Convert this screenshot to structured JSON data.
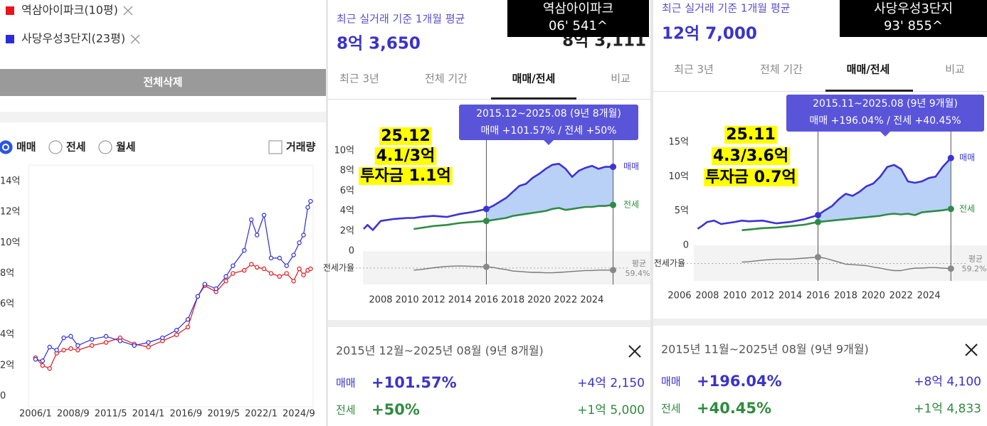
{
  "left_panel": {
    "delete_all_button": "전체삭제",
    "deal_types": [
      "매매",
      "전세",
      "월세"
    ],
    "selected_deal_type": 0,
    "volume_checkbox": "거래량",
    "chart": {
      "type": "line",
      "x": [
        2006.0,
        2006.5,
        2007,
        2007.5,
        2008,
        2008.5,
        2009,
        2010,
        2011,
        2012,
        2013,
        2014,
        2015,
        2016,
        2016.8,
        2017.5,
        2018,
        2018.8,
        2019.5,
        2020,
        2020.8,
        2021.3,
        2021.7,
        2022.2,
        2022.7,
        2023.3,
        2023.8,
        2024.3,
        2024.7,
        2025.0,
        2025.3,
        2025.5
      ],
      "xlim": [
        2005.5,
        2025.68
      ],
      "xticks": [
        {
          "value": 2006.0,
          "label": "2006/1"
        },
        {
          "value": 2008.667,
          "label": "2008/9"
        },
        {
          "value": 2011.333,
          "label": "2011/5"
        },
        {
          "value": 2014.0,
          "label": "2014/1"
        },
        {
          "value": 2016.667,
          "label": "2016/9"
        },
        {
          "value": 2019.333,
          "label": "2019/5"
        },
        {
          "value": 2022.0,
          "label": "2022/1"
        },
        {
          "value": 2024.667,
          "label": "2024/9"
        }
      ],
      "ylim": [
        0,
        14
      ],
      "yticks": [
        {
          "value": 14,
          "label": "14억"
        },
        {
          "value": 12,
          "label": "12억"
        },
        {
          "value": 10,
          "label": "10억"
        },
        {
          "value": 8,
          "label": "8억"
        },
        {
          "value": 6,
          "label": "6억"
        },
        {
          "value": 4,
          "label": "4억"
        },
        {
          "value": 2,
          "label": "2억"
        },
        0
      ],
      "markers": true,
      "series": [
        {
          "name": "역삼아이파크(10평)",
          "color": "#e8141b",
          "values": [
            2.5,
            2.0,
            1.8,
            2.8,
            3.0,
            3.1,
            3.0,
            3.3,
            3.5,
            3.8,
            3.4,
            3.2,
            3.6,
            4.0,
            4.5,
            6.5,
            7.2,
            6.8,
            7.5,
            8.0,
            8.2,
            8.6,
            8.4,
            8.3,
            8.0,
            7.8,
            8.0,
            7.5,
            8.3,
            7.9,
            8.2,
            8.3
          ]
        },
        {
          "name": "사당우성3단지(23평)",
          "color": "#2b2bd9",
          "values": [
            2.4,
            2.3,
            3.2,
            3.0,
            3.8,
            3.9,
            3.3,
            3.7,
            3.9,
            3.6,
            3.3,
            3.5,
            3.8,
            4.3,
            5.0,
            6.5,
            7.3,
            7.0,
            7.8,
            8.5,
            9.5,
            11.5,
            10.5,
            11.8,
            9.0,
            9.0,
            8.5,
            9.2,
            10.0,
            10.5,
            12.3,
            12.7
          ]
        }
      ]
    }
  },
  "middle_panel": {
    "subtitle": "최근 실거래 기준 1개월 평균",
    "price": "8억 3,650",
    "hidden_price": "8억 3,111",
    "overlay": [
      "역삼아이파크",
      "06' 541^"
    ],
    "tabs": [
      "최근 3년",
      "전체 기간",
      "매매/전세",
      "비교"
    ],
    "active_tab": 2,
    "annotation": [
      "25.12",
      "4.1/3억",
      "투자금 1.1억"
    ],
    "tooltip": [
      "2015.12~2025.08 (9년 8개월)",
      "매매 +101.57%  /  전세 +50%"
    ],
    "chart": {
      "type": "line",
      "x": [
        2006.7,
        2007.0,
        2007.4,
        2008,
        2009,
        2010,
        2010.5,
        2011,
        2012,
        2013,
        2014,
        2015,
        2016,
        2016.5,
        2017,
        2017.5,
        2018,
        2018.5,
        2019,
        2019.5,
        2020,
        2020.5,
        2021,
        2021.5,
        2022,
        2022.5,
        2023,
        2023.5,
        2024,
        2024.5,
        2025,
        2025.6
      ],
      "xlim": [
        2006.65,
        2025.84
      ],
      "xticks": [
        2008,
        2010,
        2012,
        2014,
        2016,
        2018,
        2020,
        2022,
        2024
      ],
      "ylim": [
        0,
        10
      ],
      "yticks": [
        {
          "value": 10,
          "label": "10억"
        },
        {
          "value": 8,
          "label": "8억"
        },
        {
          "value": 6,
          "label": "6억"
        },
        {
          "value": 4,
          "label": "4억"
        },
        {
          "value": 2,
          "label": "2억"
        },
        0
      ],
      "series": [
        {
          "name": "매매",
          "color": "#3b33d6",
          "values": [
            2.2,
            2.6,
            2.1,
            3.0,
            3.2,
            3.3,
            3.3,
            3.4,
            3.5,
            3.4,
            3.7,
            3.9,
            4.2,
            4.5,
            4.9,
            5.3,
            5.9,
            6.5,
            6.7,
            7.3,
            7.7,
            8.2,
            8.6,
            8.7,
            8.2,
            7.4,
            8.0,
            8.3,
            8.5,
            8.2,
            8.4,
            8.4
          ]
        },
        {
          "name": "전세",
          "color": "#2e8b45",
          "values": [
            null,
            null,
            null,
            null,
            null,
            null,
            2.2,
            2.3,
            2.5,
            2.6,
            2.8,
            2.9,
            3.0,
            3.1,
            3.2,
            3.3,
            3.5,
            3.6,
            3.7,
            3.8,
            3.9,
            4.0,
            4.2,
            4.3,
            4.1,
            4.2,
            4.3,
            4.4,
            4.4,
            4.5,
            4.5,
            4.6
          ]
        }
      ],
      "ratio": {
        "name": "전세가율",
        "color": "#777777",
        "ylim": [
          30,
          90
        ],
        "values": [
          null,
          null,
          null,
          null,
          null,
          null,
          55,
          56,
          60,
          63,
          64,
          63,
          62,
          61,
          58,
          56,
          53,
          52,
          51,
          50,
          50,
          49,
          49,
          50,
          51,
          52,
          53,
          54,
          54,
          55,
          55,
          55
        ],
        "average": {
          "label": "평균",
          "value": 59.4,
          "value_label": "59.4%"
        }
      }
    },
    "summary": {
      "period": "2015년 12월~2025년 08월 (9년 8개월)",
      "rows": [
        {
          "label": "매매",
          "change": "+101.57%",
          "amount": "+4억 2,150"
        },
        {
          "label": "전세",
          "change": "+50%",
          "amount": "+1억 5,000"
        }
      ]
    }
  },
  "right_panel": {
    "subtitle": "최근 실거래 기준 1개월 평균",
    "price": "12억 7,000",
    "overlay": [
      "사당우성3단지",
      "93' 855^"
    ],
    "tabs": [
      "최근 3년",
      "전체 기간",
      "매매/전세",
      "비교"
    ],
    "active_tab": 2,
    "annotation": [
      "25.11",
      "4.3/3.6억",
      "투자금 0.7억"
    ],
    "tooltip": [
      "2015.11~2025.08 (9년 9개월)",
      "매매 +196.04%  /  전세 +40.45%"
    ],
    "chart": {
      "type": "line",
      "x": [
        2007.3,
        2007.6,
        2008,
        2008.5,
        2009,
        2010,
        2010.5,
        2011,
        2012,
        2013,
        2014,
        2015,
        2016,
        2016.5,
        2017,
        2017.5,
        2018,
        2018.5,
        2019,
        2019.5,
        2020,
        2020.5,
        2021,
        2021.5,
        2022,
        2022.5,
        2023,
        2023.5,
        2024,
        2024.5,
        2025,
        2025.6
      ],
      "xlim": [
        2007.03,
        2025.69
      ],
      "xticks": [
        2006,
        2008,
        2010,
        2012,
        2014,
        2016,
        2018,
        2020,
        2022,
        2024
      ],
      "ylim": [
        0,
        15
      ],
      "yticks": [
        {
          "value": 15,
          "label": "15억"
        },
        {
          "value": 10,
          "label": "10억"
        },
        {
          "value": 5,
          "label": "5억"
        },
        0
      ],
      "series": [
        {
          "name": "매매",
          "color": "#3b33d6",
          "values": [
            2.4,
            2.8,
            3.4,
            3.6,
            3.1,
            3.4,
            3.6,
            3.5,
            3.6,
            3.2,
            3.4,
            3.8,
            4.4,
            5.1,
            5.7,
            6.7,
            7.5,
            7.2,
            7.8,
            8.6,
            9.0,
            10.0,
            11.4,
            11.7,
            11.1,
            9.3,
            9.1,
            9.3,
            9.8,
            10.0,
            11.4,
            12.7
          ]
        },
        {
          "name": "전세",
          "color": "#2e8b45",
          "values": [
            null,
            null,
            null,
            null,
            null,
            null,
            2.2,
            2.3,
            2.5,
            2.6,
            2.8,
            3.0,
            3.4,
            3.5,
            3.6,
            3.7,
            3.8,
            3.9,
            4.0,
            4.1,
            4.2,
            4.3,
            4.5,
            4.6,
            4.5,
            4.6,
            4.4,
            4.8,
            4.9,
            5.0,
            5.1,
            5.3
          ]
        }
      ],
      "ratio": {
        "name": "전세가율",
        "color": "#777777",
        "ylim": [
          30,
          90
        ],
        "values": [
          null,
          null,
          null,
          null,
          null,
          null,
          62,
          63,
          66,
          68,
          68,
          70,
          72,
          70,
          66,
          62,
          58,
          57,
          56,
          55,
          52,
          50,
          47,
          45,
          45,
          48,
          50,
          50,
          51,
          51,
          50,
          49
        ],
        "average": {
          "label": "평균",
          "value": 59.2,
          "value_label": "59.2%"
        }
      }
    },
    "summary": {
      "period": "2015년 11월~2025년 08월 (9년 9개월)",
      "rows": [
        {
          "label": "매매",
          "change": "+196.04%",
          "amount": "+8억 4,100"
        },
        {
          "label": "전세",
          "change": "+40.45%",
          "amount": "+1억 4,833"
        }
      ]
    }
  }
}
